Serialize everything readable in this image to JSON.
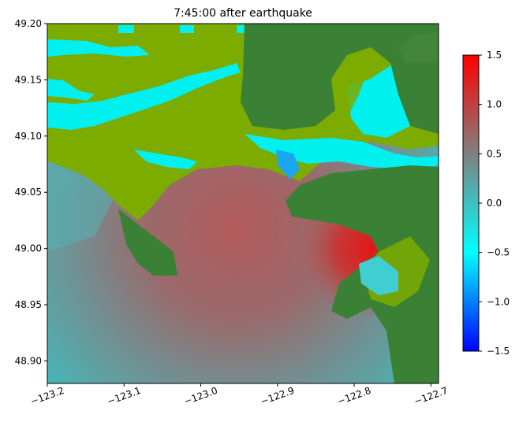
{
  "chart_data": {
    "type": "heatmap",
    "title": "7:45:00 after earthquake",
    "xlabel": "",
    "ylabel": "",
    "xlim": [
      -123.2,
      -122.69
    ],
    "ylim": [
      48.88,
      49.2
    ],
    "xticks": [
      -123.2,
      -123.1,
      -123.0,
      -122.9,
      -122.8,
      -122.7
    ],
    "xtick_labels": [
      "−123.2",
      "−123.1",
      "−123.0",
      "−122.9",
      "−122.8",
      "−122.7"
    ],
    "yticks": [
      48.9,
      48.95,
      49.0,
      49.05,
      49.1,
      49.15,
      49.2
    ],
    "ytick_labels": [
      "48.90",
      "48.95",
      "49.00",
      "49.05",
      "49.10",
      "49.15",
      "49.20"
    ],
    "colorbar": {
      "min": -1.5,
      "max": 1.5,
      "ticks": [
        -1.5,
        -1.0,
        -0.5,
        0.0,
        0.5,
        1.0,
        1.5
      ],
      "tick_labels": [
        "−1.5",
        "−1.0",
        "−0.5",
        "0.0",
        "0.5",
        "1.0",
        "1.5"
      ],
      "colors": [
        "#0000ff",
        "#00ffff",
        "#808080",
        "#ff0000"
      ]
    },
    "field_description": "surface elevation (m) over water; land shaded green (dry land dark green #3a8035, tidal/low land olive #7cac00, flooded land cyan)",
    "peak_value": 1.15,
    "peak_location": [
      -122.77,
      48.995
    ],
    "grid": false
  }
}
